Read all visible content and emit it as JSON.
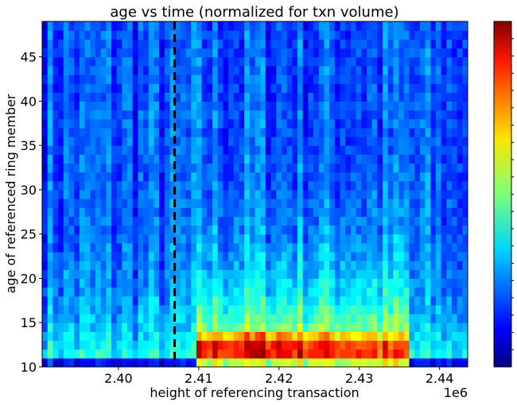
{
  "chart_data": {
    "type": "heatmap",
    "title": "age vs time (normalized for txn volume)",
    "xlabel": "height of referencing transaction",
    "ylabel": "age of referenced ring member",
    "x_offset_label": "1e6",
    "xlim": [
      2.3905,
      2.4435
    ],
    "ylim": [
      10,
      49
    ],
    "x_ticks": [
      2.4,
      2.41,
      2.42,
      2.43,
      2.44
    ],
    "x_tick_labels": [
      "2.40",
      "2.41",
      "2.42",
      "2.43",
      "2.44"
    ],
    "y_ticks": [
      10,
      15,
      20,
      25,
      30,
      35,
      40,
      45
    ],
    "y_tick_labels": [
      "10",
      "15",
      "20",
      "25",
      "30",
      "35",
      "40",
      "45"
    ],
    "colormap": "jet",
    "colorbar": true,
    "colorbar_tick_labels": "none",
    "dashed_vline": {
      "x": 2.407,
      "color": "#000000",
      "style": "dashed"
    },
    "grid_cols": 80,
    "grid_rows": 39,
    "regions": [
      {
        "description": "x < 2.41, low",
        "x_range": [
          2.3905,
          2.41
        ],
        "typical_value": 0.25
      },
      {
        "description": "2.41 to 2.436, ages 11-13 band",
        "x_range": [
          2.41,
          2.436
        ],
        "y_range": [
          11,
          14
        ],
        "typical_value": 0.85
      },
      {
        "description": "2.41 to 2.436, ages 14-25",
        "x_range": [
          2.41,
          2.436
        ],
        "y_range": [
          14,
          25
        ],
        "typical_value": 0.5
      },
      {
        "description": "x > 2.436, low",
        "x_range": [
          2.436,
          2.4435
        ],
        "typical_value": 0.25
      }
    ]
  }
}
